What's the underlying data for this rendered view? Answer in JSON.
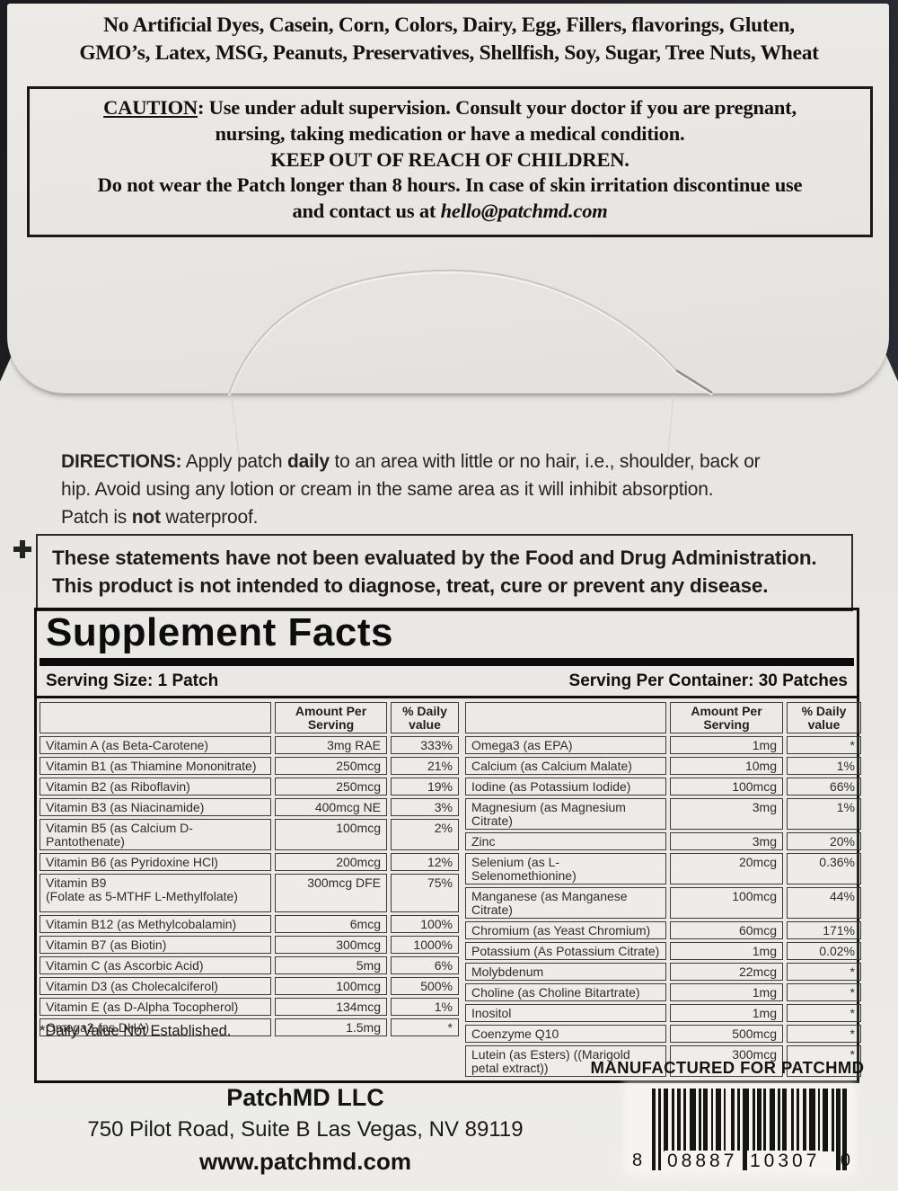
{
  "colors": {
    "paper": "#e9e7e4",
    "background": "#222428",
    "text": "#161616",
    "border": "#0f0f0f"
  },
  "icons": {
    "plus_marker": "cross-shape"
  },
  "allergens": {
    "line1": "No Artificial Dyes, Casein, Corn, Colors, Dairy, Egg, Fillers, flavorings, Gluten,",
    "line2": "GMO’s, Latex, MSG, Peanuts, Preservatives, Shellfish, Soy, Sugar, Tree Nuts, Wheat"
  },
  "caution": {
    "title": "CAUTION",
    "line1_rest": ": Use under adult supervision. Consult your doctor if you are pregnant,",
    "line2": "nursing, taking medication or have a medical condition.",
    "line3": "KEEP OUT OF REACH OF CHILDREN.",
    "line4": "Do not wear the Patch longer than 8 hours. In case of skin irritation discontinue use",
    "line5_prefix": "and contact us at ",
    "line5_email": "hello@patchmd.com"
  },
  "directions": {
    "label": "DIRECTIONS:",
    "line1_a": " Apply patch ",
    "line1_bold": "daily",
    "line1_b": " to an area with little or no hair, i.e., shoulder, back or",
    "line2": "hip. Avoid using any lotion or cream in the same area as it will inhibit absorption.",
    "line3_a": "Patch is ",
    "line3_bold": "not",
    "line3_b": " waterproof."
  },
  "disclaimer": {
    "line1": "These statements have not been evaluated by the Food and Drug Administration.",
    "line2": "This product is not intended to diagnose, treat, cure or prevent any disease."
  },
  "supplement": {
    "title": "Supplement Facts",
    "serving_size": "Serving Size: 1 Patch",
    "serving_per": "Serving Per Container: 30 Patches",
    "col_amount": "Amount Per Serving",
    "col_dv": "% Daily value",
    "footnote": "*Daily Value Not Established.",
    "left_rows": [
      {
        "name": "Vitamin A (as Beta-Carotene)",
        "amount": "3mg RAE",
        "dv": "333%"
      },
      {
        "name": "Vitamin B1 (as Thiamine Mononitrate)",
        "amount": "250mcg",
        "dv": "21%"
      },
      {
        "name": "Vitamin B2 (as Riboflavin)",
        "amount": "250mcg",
        "dv": "19%"
      },
      {
        "name": "Vitamin B3 (as Niacinamide)",
        "amount": "400mcg NE",
        "dv": "3%"
      },
      {
        "name": "Vitamin B5 (as Calcium D-Pantothenate)",
        "amount": "100mcg",
        "dv": "2%"
      },
      {
        "name": "Vitamin B6 (as Pyridoxine HCl)",
        "amount": "200mcg",
        "dv": "12%"
      },
      {
        "name": "Vitamin B9",
        "sub": "(Folate as 5-MTHF L-Methylfolate)",
        "amount": "300mcg DFE",
        "dv": "75%"
      },
      {
        "name": "Vitamin B12 (as Methylcobalamin)",
        "amount": "6mcg",
        "dv": "100%"
      },
      {
        "name": "Vitamin B7 (as Biotin)",
        "amount": "300mcg",
        "dv": "1000%"
      },
      {
        "name": "Vitamin C (as Ascorbic Acid)",
        "amount": "5mg",
        "dv": "6%"
      },
      {
        "name": "Vitamin D3 (as Cholecalciferol)",
        "amount": "100mcg",
        "dv": "500%"
      },
      {
        "name": "Vitamin E (as D-Alpha Tocopherol)",
        "amount": "134mcg",
        "dv": "1%"
      },
      {
        "name": "Omega3 (as DHA)",
        "amount": "1.5mg",
        "dv": "*"
      }
    ],
    "right_rows": [
      {
        "name": "Omega3 (as EPA)",
        "amount": "1mg",
        "dv": "*"
      },
      {
        "name": "Calcium (as Calcium Malate)",
        "amount": "10mg",
        "dv": "1%"
      },
      {
        "name": "Iodine (as Potassium Iodide)",
        "amount": "100mcg",
        "dv": "66%"
      },
      {
        "name": "Magnesium (as Magnesium Citrate)",
        "amount": "3mg",
        "dv": "1%"
      },
      {
        "name": "Zinc",
        "amount": "3mg",
        "dv": "20%"
      },
      {
        "name": "Selenium (as L-Selenomethionine)",
        "amount": "20mcg",
        "dv": "0.36%"
      },
      {
        "name": "Manganese (as Manganese Citrate)",
        "amount": "100mcg",
        "dv": "44%"
      },
      {
        "name": "Chromium (as Yeast Chromium)",
        "amount": "60mcg",
        "dv": "171%"
      },
      {
        "name": "Potassium (As Potassium Citrate)",
        "amount": "1mg",
        "dv": "0.02%"
      },
      {
        "name": "Molybdenum",
        "amount": "22mcg",
        "dv": "*"
      },
      {
        "name": "Choline (as Choline Bitartrate)",
        "amount": "1mg",
        "dv": "*"
      },
      {
        "name": "Inositol",
        "amount": "1mg",
        "dv": "*"
      },
      {
        "name": "Coenzyme Q10",
        "amount": "500mcg",
        "dv": "*"
      },
      {
        "name": "Lutein (as Esters) ((Marigold petal extract))",
        "amount": "300mcg",
        "dv": "*"
      }
    ]
  },
  "footer": {
    "manufactured": "MANUFACTURED FOR PATCHMD",
    "company": "PatchMD LLC",
    "address": "750 Pilot Road, Suite B Las Vegas, NV 89119",
    "website": "www.patchmd.com",
    "barcode": {
      "left_digit": "8",
      "group1": "08887",
      "group2": "10307",
      "right_digit": "0",
      "pattern": [
        3,
        2,
        2,
        2,
        4,
        3,
        2,
        2,
        3,
        2,
        2,
        3,
        5,
        2,
        2,
        2,
        3,
        3,
        2,
        2,
        4,
        2,
        2,
        4,
        3,
        2,
        2,
        2,
        5,
        3,
        2,
        2,
        3,
        2,
        2,
        3,
        4,
        2,
        2,
        2,
        3,
        4,
        2,
        2,
        2,
        3,
        3,
        2,
        5,
        2,
        2,
        2,
        4,
        3,
        2,
        2,
        3,
        2,
        3
      ]
    }
  }
}
